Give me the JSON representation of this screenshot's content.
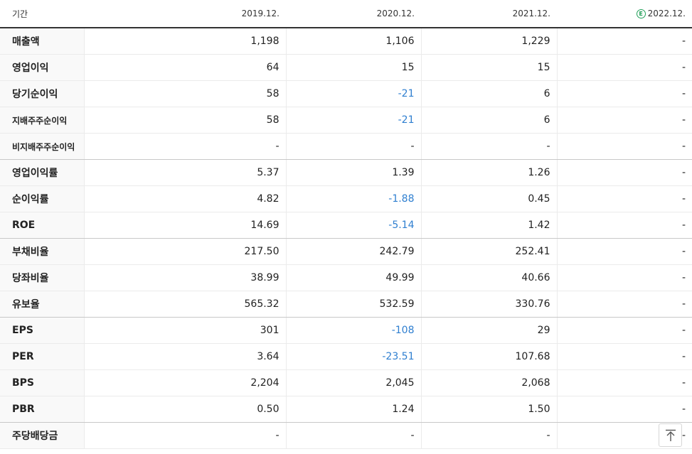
{
  "header": {
    "label": "기간",
    "columns": [
      "2019.12.",
      "2020.12.",
      "2021.12.",
      "2022.12."
    ],
    "estimate_icon_letter": "E",
    "estimate_icon_color": "#22a05a"
  },
  "rows": [
    {
      "label": "매출액",
      "small": false,
      "values": [
        "1,198",
        "1,106",
        "1,229",
        "-"
      ],
      "negative": [
        false,
        false,
        false,
        false
      ]
    },
    {
      "label": "영업이익",
      "small": false,
      "values": [
        "64",
        "15",
        "15",
        "-"
      ],
      "negative": [
        false,
        false,
        false,
        false
      ]
    },
    {
      "label": "당기순이익",
      "small": false,
      "values": [
        "58",
        "-21",
        "6",
        "-"
      ],
      "negative": [
        false,
        true,
        false,
        false
      ]
    },
    {
      "label": "지배주주순이익",
      "small": true,
      "values": [
        "58",
        "-21",
        "6",
        "-"
      ],
      "negative": [
        false,
        true,
        false,
        false
      ]
    },
    {
      "label": "비지배주주순이익",
      "small": true,
      "values": [
        "-",
        "-",
        "-",
        "-"
      ],
      "negative": [
        false,
        false,
        false,
        false
      ],
      "group_end": true
    },
    {
      "label": "영업이익률",
      "small": false,
      "values": [
        "5.37",
        "1.39",
        "1.26",
        "-"
      ],
      "negative": [
        false,
        false,
        false,
        false
      ]
    },
    {
      "label": "순이익률",
      "small": false,
      "values": [
        "4.82",
        "-1.88",
        "0.45",
        "-"
      ],
      "negative": [
        false,
        true,
        false,
        false
      ]
    },
    {
      "label": "ROE",
      "small": false,
      "values": [
        "14.69",
        "-5.14",
        "1.42",
        "-"
      ],
      "negative": [
        false,
        true,
        false,
        false
      ],
      "group_end": true
    },
    {
      "label": "부채비율",
      "small": false,
      "values": [
        "217.50",
        "242.79",
        "252.41",
        "-"
      ],
      "negative": [
        false,
        false,
        false,
        false
      ]
    },
    {
      "label": "당좌비율",
      "small": false,
      "values": [
        "38.99",
        "49.99",
        "40.66",
        "-"
      ],
      "negative": [
        false,
        false,
        false,
        false
      ]
    },
    {
      "label": "유보율",
      "small": false,
      "values": [
        "565.32",
        "532.59",
        "330.76",
        "-"
      ],
      "negative": [
        false,
        false,
        false,
        false
      ],
      "group_end": true
    },
    {
      "label": "EPS",
      "small": false,
      "values": [
        "301",
        "-108",
        "29",
        "-"
      ],
      "negative": [
        false,
        true,
        false,
        false
      ]
    },
    {
      "label": "PER",
      "small": false,
      "values": [
        "3.64",
        "-23.51",
        "107.68",
        "-"
      ],
      "negative": [
        false,
        true,
        false,
        false
      ]
    },
    {
      "label": "BPS",
      "small": false,
      "values": [
        "2,204",
        "2,045",
        "2,068",
        "-"
      ],
      "negative": [
        false,
        false,
        false,
        false
      ]
    },
    {
      "label": "PBR",
      "small": false,
      "values": [
        "0.50",
        "1.24",
        "1.50",
        "-"
      ],
      "negative": [
        false,
        false,
        false,
        false
      ],
      "group_end": true
    },
    {
      "label": "주당배당금",
      "small": false,
      "values": [
        "-",
        "-",
        "-",
        "-"
      ],
      "negative": [
        false,
        false,
        false,
        false
      ]
    }
  ],
  "colors": {
    "negative": "#2f7fd0",
    "header_rule": "#333333",
    "label_bg": "#f9f9f9"
  },
  "top_button": {
    "icon": "arrow-up-to-top-icon"
  }
}
